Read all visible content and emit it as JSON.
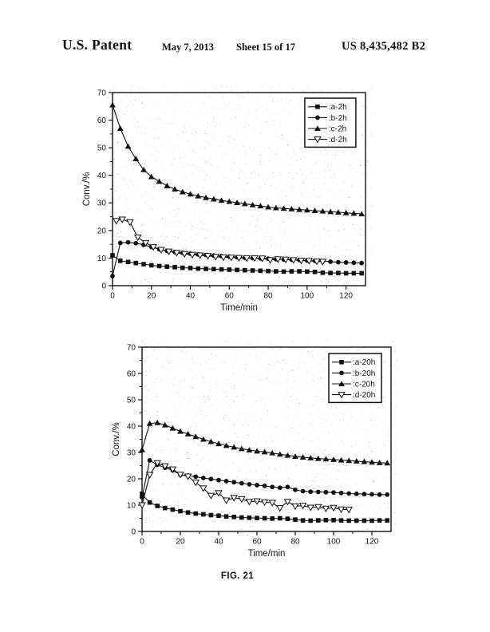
{
  "header": {
    "title": "U.S. Patent",
    "date": "May 7, 2013",
    "sheet": "Sheet 15 of 17",
    "number": "US 8,435,482 B2"
  },
  "caption": "FIG. 21",
  "colors": {
    "ink": "#111111",
    "paper": "#ffffff"
  },
  "chart_data": [
    {
      "type": "line",
      "title": "",
      "xlabel": "Time/min",
      "ylabel": "Conv./%",
      "xlim": [
        0,
        130
      ],
      "ylim": [
        0,
        70
      ],
      "xticks": [
        0,
        20,
        40,
        60,
        80,
        100,
        120
      ],
      "yticks": [
        0,
        10,
        20,
        30,
        40,
        50,
        60,
        70
      ],
      "x_minor_step": 10,
      "y_minor_step": 5,
      "grid": false,
      "legend_position": "top-right",
      "series": [
        {
          "name": ":a-2h",
          "marker": "square-filled",
          "points": [
            [
              0,
              11
            ],
            [
              4,
              9
            ],
            [
              8,
              8.6
            ],
            [
              12,
              8.2
            ],
            [
              16,
              7.8
            ],
            [
              20,
              7.4
            ],
            [
              24,
              7.1
            ],
            [
              28,
              6.9
            ],
            [
              32,
              6.7
            ],
            [
              36,
              6.5
            ],
            [
              40,
              6.4
            ],
            [
              44,
              6.2
            ],
            [
              48,
              6.1
            ],
            [
              52,
              6
            ],
            [
              56,
              5.9
            ],
            [
              60,
              5.8
            ],
            [
              64,
              5.7
            ],
            [
              68,
              5.6
            ],
            [
              72,
              5.5
            ],
            [
              76,
              5.4
            ],
            [
              80,
              5.3
            ],
            [
              84,
              5.2
            ],
            [
              88,
              5.1
            ],
            [
              92,
              5.2
            ],
            [
              96,
              5.2
            ],
            [
              100,
              5.1
            ],
            [
              104,
              5
            ],
            [
              108,
              4.7
            ],
            [
              112,
              4.6
            ],
            [
              116,
              4.6
            ],
            [
              120,
              4.5
            ],
            [
              124,
              4.5
            ],
            [
              128,
              4.5
            ]
          ]
        },
        {
          "name": ":b-2h",
          "marker": "circle-filled",
          "points": [
            [
              0,
              3.5
            ],
            [
              4,
              15.5
            ],
            [
              8,
              15.7
            ],
            [
              12,
              15.4
            ],
            [
              16,
              14.8
            ],
            [
              20,
              14
            ],
            [
              24,
              13.2
            ],
            [
              28,
              12.6
            ],
            [
              32,
              12.2
            ],
            [
              36,
              11.9
            ],
            [
              40,
              11.6
            ],
            [
              44,
              11.3
            ],
            [
              48,
              11.1
            ],
            [
              52,
              10.9
            ],
            [
              56,
              10.7
            ],
            [
              60,
              10.5
            ],
            [
              64,
              10.3
            ],
            [
              68,
              10.1
            ],
            [
              72,
              10
            ],
            [
              76,
              9.9
            ],
            [
              80,
              9.8
            ],
            [
              84,
              9.6
            ],
            [
              88,
              9.5
            ],
            [
              92,
              9.4
            ],
            [
              96,
              9.3
            ],
            [
              100,
              9.1
            ],
            [
              104,
              9
            ],
            [
              108,
              8.9
            ],
            [
              112,
              8.7
            ],
            [
              116,
              8.5
            ],
            [
              120,
              8.4
            ],
            [
              124,
              8.3
            ],
            [
              128,
              8.2
            ]
          ]
        },
        {
          "name": ":c-2h",
          "marker": "triangle-up-filled",
          "points": [
            [
              0,
              65.5
            ],
            [
              4,
              57
            ],
            [
              8,
              50.5
            ],
            [
              12,
              46
            ],
            [
              16,
              42
            ],
            [
              20,
              39.5
            ],
            [
              24,
              37.8
            ],
            [
              28,
              36.2
            ],
            [
              32,
              35
            ],
            [
              36,
              34
            ],
            [
              40,
              33.2
            ],
            [
              44,
              32.5
            ],
            [
              48,
              31.9
            ],
            [
              52,
              31.4
            ],
            [
              56,
              30.9
            ],
            [
              60,
              30.5
            ],
            [
              64,
              30.1
            ],
            [
              68,
              29.7
            ],
            [
              72,
              29.3
            ],
            [
              76,
              28.9
            ],
            [
              80,
              28.5
            ],
            [
              84,
              28.2
            ],
            [
              88,
              28
            ],
            [
              92,
              27.8
            ],
            [
              96,
              27.6
            ],
            [
              100,
              27.4
            ],
            [
              104,
              27.2
            ],
            [
              108,
              27
            ],
            [
              112,
              26.8
            ],
            [
              116,
              26.6
            ],
            [
              120,
              26.4
            ],
            [
              124,
              26.2
            ],
            [
              128,
              26
            ]
          ]
        },
        {
          "name": ":d-2h",
          "marker": "triangle-down-open",
          "points": [
            [
              2,
              23.5
            ],
            [
              5,
              24
            ],
            [
              9,
              23
            ],
            [
              13,
              17.5
            ],
            [
              17,
              15.5
            ],
            [
              21,
              14
            ],
            [
              25,
              13
            ],
            [
              29,
              12.4
            ],
            [
              33,
              11.9
            ],
            [
              37,
              11.5
            ],
            [
              41,
              11.2
            ],
            [
              45,
              11
            ],
            [
              49,
              10.8
            ],
            [
              53,
              10.5
            ],
            [
              57,
              10.3
            ],
            [
              61,
              10.2
            ],
            [
              65,
              10.1
            ],
            [
              69,
              10
            ],
            [
              73,
              10
            ],
            [
              77,
              9.9
            ],
            [
              81,
              9.3
            ],
            [
              85,
              9.6
            ],
            [
              89,
              9.5
            ],
            [
              93,
              9.3
            ],
            [
              97,
              9.1
            ],
            [
              101,
              9
            ],
            [
              105,
              8.8
            ],
            [
              108,
              8.7
            ]
          ]
        }
      ]
    },
    {
      "type": "line",
      "title": "",
      "xlabel": "Time/min",
      "ylabel": "Conv./%",
      "xlim": [
        0,
        130
      ],
      "ylim": [
        0,
        70
      ],
      "xticks": [
        0,
        20,
        40,
        60,
        80,
        100,
        120
      ],
      "yticks": [
        0,
        10,
        20,
        30,
        40,
        50,
        60,
        70
      ],
      "x_minor_step": 10,
      "y_minor_step": 5,
      "grid": false,
      "legend_position": "top-right",
      "series": [
        {
          "name": ":a-20h",
          "marker": "square-filled",
          "points": [
            [
              0,
              14
            ],
            [
              4,
              11
            ],
            [
              8,
              9.7
            ],
            [
              12,
              8.9
            ],
            [
              16,
              8.3
            ],
            [
              20,
              7.7
            ],
            [
              24,
              7.2
            ],
            [
              28,
              6.8
            ],
            [
              32,
              6.5
            ],
            [
              36,
              6.2
            ],
            [
              40,
              6
            ],
            [
              44,
              5.7
            ],
            [
              48,
              5.5
            ],
            [
              52,
              5.3
            ],
            [
              56,
              5.2
            ],
            [
              60,
              5.1
            ],
            [
              64,
              5
            ],
            [
              68,
              4.9
            ],
            [
              72,
              5
            ],
            [
              76,
              4.8
            ],
            [
              80,
              4.5
            ],
            [
              84,
              4.2
            ],
            [
              88,
              4.1
            ],
            [
              92,
              4.2
            ],
            [
              96,
              4.3
            ],
            [
              100,
              4.3
            ],
            [
              104,
              4.2
            ],
            [
              108,
              4.1
            ],
            [
              112,
              4.1
            ],
            [
              116,
              4.1
            ],
            [
              120,
              4.1
            ],
            [
              124,
              4.2
            ],
            [
              128,
              4.2
            ]
          ]
        },
        {
          "name": ":b-20h",
          "marker": "circle-filled",
          "points": [
            [
              0,
              13
            ],
            [
              4,
              27
            ],
            [
              8,
              25.3
            ],
            [
              12,
              24.2
            ],
            [
              16,
              23.2
            ],
            [
              20,
              21.5
            ],
            [
              24,
              21.2
            ],
            [
              28,
              20.8
            ],
            [
              32,
              20.3
            ],
            [
              36,
              19.9
            ],
            [
              40,
              19.5
            ],
            [
              44,
              19.1
            ],
            [
              48,
              18.7
            ],
            [
              52,
              18.3
            ],
            [
              56,
              17.9
            ],
            [
              60,
              17.6
            ],
            [
              64,
              17.3
            ],
            [
              68,
              16.9
            ],
            [
              72,
              16.6
            ],
            [
              76,
              16.9
            ],
            [
              80,
              15.8
            ],
            [
              84,
              15.3
            ],
            [
              88,
              15.1
            ],
            [
              92,
              15
            ],
            [
              96,
              14.9
            ],
            [
              100,
              14.8
            ],
            [
              104,
              14.6
            ],
            [
              108,
              14.4
            ],
            [
              112,
              14.3
            ],
            [
              116,
              14.2
            ],
            [
              120,
              14.1
            ],
            [
              124,
              14
            ],
            [
              128,
              14
            ]
          ]
        },
        {
          "name": ":c-20h",
          "marker": "triangle-up-filled",
          "points": [
            [
              0,
              31
            ],
            [
              4,
              41
            ],
            [
              8,
              41.3
            ],
            [
              12,
              40.4
            ],
            [
              16,
              39.2
            ],
            [
              20,
              38
            ],
            [
              24,
              37
            ],
            [
              28,
              36
            ],
            [
              32,
              35
            ],
            [
              36,
              34.1
            ],
            [
              40,
              33.3
            ],
            [
              44,
              32.6
            ],
            [
              48,
              32
            ],
            [
              52,
              31.4
            ],
            [
              56,
              30.9
            ],
            [
              60,
              30.5
            ],
            [
              64,
              30.2
            ],
            [
              68,
              29.8
            ],
            [
              72,
              29.3
            ],
            [
              76,
              28.9
            ],
            [
              80,
              28.5
            ],
            [
              84,
              28.2
            ],
            [
              88,
              27.9
            ],
            [
              92,
              27.7
            ],
            [
              96,
              27.5
            ],
            [
              100,
              27.3
            ],
            [
              104,
              27.1
            ],
            [
              108,
              26.9
            ],
            [
              112,
              26.7
            ],
            [
              116,
              26.5
            ],
            [
              120,
              26.3
            ],
            [
              124,
              26.1
            ],
            [
              128,
              26
            ]
          ]
        },
        {
          "name": ":d-20h",
          "marker": "triangle-down-open",
          "points": [
            [
              0,
              10
            ],
            [
              4,
              21.5
            ],
            [
              8,
              26
            ],
            [
              12,
              24.8
            ],
            [
              16,
              23.6
            ],
            [
              20,
              21.6
            ],
            [
              24,
              20.9
            ],
            [
              28,
              18.6
            ],
            [
              32,
              16.4
            ],
            [
              36,
              13.6
            ],
            [
              40,
              14.6
            ],
            [
              44,
              11.8
            ],
            [
              48,
              12.8
            ],
            [
              52,
              12.3
            ],
            [
              56,
              11.3
            ],
            [
              60,
              11.5
            ],
            [
              64,
              11.1
            ],
            [
              68,
              10.9
            ],
            [
              72,
              8.9
            ],
            [
              76,
              11.3
            ],
            [
              80,
              9.6
            ],
            [
              84,
              9.8
            ],
            [
              88,
              9.1
            ],
            [
              92,
              9.3
            ],
            [
              96,
              8.7
            ],
            [
              100,
              9
            ],
            [
              104,
              8.4
            ],
            [
              108,
              8.3
            ]
          ]
        }
      ]
    }
  ]
}
